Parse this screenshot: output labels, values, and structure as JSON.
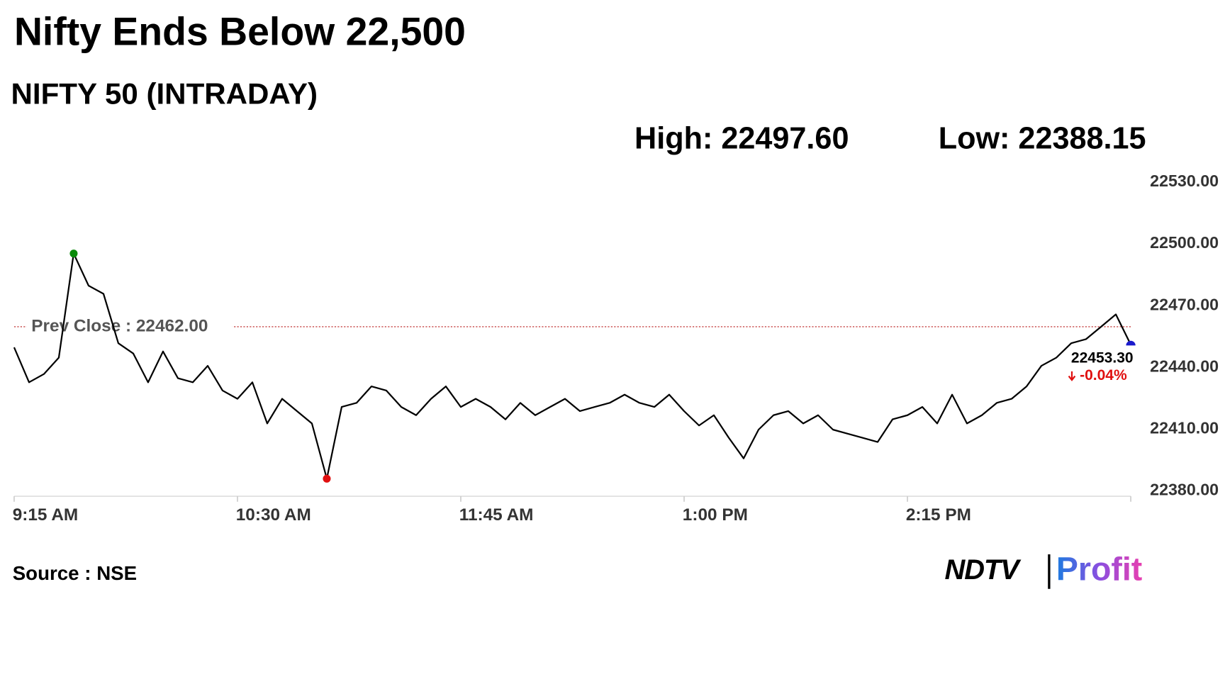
{
  "chart_data": {
    "type": "line",
    "title": "Nifty Ends Below 22,500",
    "subtitle": "NIFTY 50 (INTRADAY)",
    "high": "High: 22497.60",
    "low": "Low: 22388.15",
    "prev_close": {
      "value": 22462,
      "label": "Prev Close : 22462.00"
    },
    "last_label": "22453.30",
    "change_label": "-0.04%",
    "source": "Source : NSE",
    "logo": [
      "NDTV",
      "Profit"
    ],
    "categories": [
      "9:15 AM",
      null,
      null,
      null,
      null,
      null,
      null,
      null,
      null,
      null,
      null,
      null,
      null,
      null,
      null,
      "10:30 AM",
      null,
      null,
      null,
      null,
      null,
      null,
      null,
      null,
      null,
      null,
      null,
      null,
      null,
      null,
      "11:45 AM",
      null,
      null,
      null,
      null,
      null,
      null,
      null,
      null,
      null,
      null,
      null,
      null,
      null,
      null,
      "1:00 PM",
      null,
      null,
      null,
      null,
      null,
      null,
      null,
      null,
      null,
      null,
      null,
      null,
      null,
      null,
      "2:15 PM",
      null,
      null,
      null,
      null,
      null,
      null,
      null,
      null,
      null,
      null,
      null,
      null,
      null,
      null,
      null
    ],
    "series": [
      {
        "color": "#000000",
        "values": [
          22452,
          22435,
          22439,
          22447,
          22497.6,
          22482,
          22478,
          22454,
          22449,
          22435,
          22450,
          22437,
          22435,
          22443,
          22431,
          22427,
          22435,
          22415,
          22427,
          22421,
          22415,
          22388.15,
          22423,
          22425,
          22433,
          22431,
          22423,
          22419,
          22427,
          22433,
          22423,
          22427,
          22423,
          22417,
          22425,
          22419,
          22423,
          22427,
          22421,
          22423,
          22425,
          22429,
          22425,
          22423,
          22429,
          22421,
          22414,
          22419,
          22408,
          22398,
          22412,
          22419,
          22421,
          22415,
          22419,
          22412,
          22410,
          22408,
          22406,
          22417,
          22419,
          22423,
          22415,
          22429,
          22415,
          22419,
          22425,
          22427,
          22433,
          22443,
          22447,
          22454,
          22456,
          22462,
          22468,
          22453.3
        ]
      }
    ],
    "ylim": [
      22380,
      22530
    ],
    "yticks": [
      {
        "value": 22380,
        "label": "22380.00"
      },
      {
        "value": 22410,
        "label": "22410.00"
      },
      {
        "value": 22440,
        "label": "22440.00"
      },
      {
        "value": 22470,
        "label": "22470.00"
      },
      {
        "value": 22500,
        "label": "22500.00"
      },
      {
        "value": 22530,
        "label": "22530.00"
      }
    ],
    "grid": false
  }
}
